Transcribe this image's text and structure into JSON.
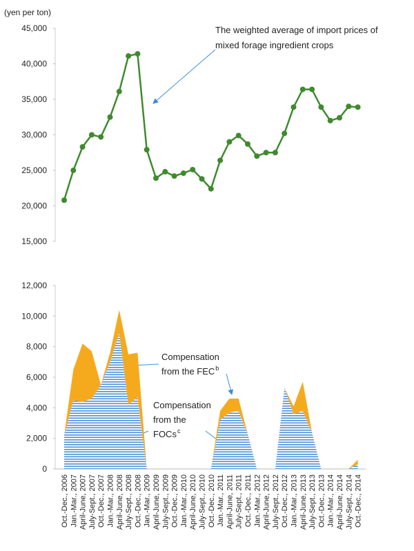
{
  "chart_data": [
    {
      "type": "line",
      "y_label": "(yen per ton)",
      "annotation": [
        "The weighted average of import prices of",
        "mixed forage ingredient crops"
      ],
      "categories": [
        "Oct.-Dec., 2006",
        "Jan.-Mar., 2007",
        "April-June, 2007",
        "July-Sept., 2007",
        "Oct.-Dec., 2007",
        "Jan.-Mar., 2008",
        "April-June, 2008",
        "July-Sept., 2008",
        "Oct.-Dec., 2008",
        "Jan.-Mar., 2009",
        "April-June, 2009",
        "July-Sept., 2009",
        "Oct.-Dec., 2009",
        "Jan.-Mar., 2010",
        "April-June, 2010",
        "July-Sept., 2010",
        "Oct.-Dec., 2010",
        "Jan.-Mar., 2011",
        "April-June, 2011",
        "July-Sept., 2011",
        "Oct.-Dec., 2011",
        "Jan.-Mar., 2012",
        "April-June, 2012",
        "July-Sept., 2012",
        "Oct.-Dec., 2012",
        "Jan.-Mar., 2013",
        "April-June, 2013",
        "July-Sept., 2013",
        "Oct.-Dec., 2013",
        "Jan.-Mar., 2014",
        "April-June, 2014",
        "July-Sept., 2014",
        "Oct.-Dec., 2014"
      ],
      "values": [
        20800,
        25000,
        28300,
        30000,
        29700,
        32500,
        36100,
        41100,
        41400,
        27900,
        23900,
        24800,
        24200,
        24600,
        25100,
        23800,
        22400,
        26400,
        29000,
        29900,
        28700,
        27000,
        27500,
        27500,
        30200,
        33900,
        36400,
        36400,
        33900,
        32000,
        32400,
        34000,
        33900
      ],
      "color": "#3f8a2e",
      "ylim": [
        15000,
        45000
      ],
      "yticks": [
        {
          "value": 15000,
          "label": "15,000"
        },
        {
          "value": 20000,
          "label": "20,000"
        },
        {
          "value": 25000,
          "label": "25,000"
        },
        {
          "value": 30000,
          "label": "30,000"
        },
        {
          "value": 35000,
          "label": "35,000"
        },
        {
          "value": 40000,
          "label": "40,000"
        },
        {
          "value": 45000,
          "label": "45,000"
        }
      ]
    },
    {
      "type": "stacked_area",
      "categories": [
        "Oct.-Dec., 2006",
        "Jan.-Mar., 2007",
        "April-June, 2007",
        "July-Sept., 2007",
        "Oct.-Dec., 2007",
        "Jan.-Mar., 2008",
        "April-June, 2008",
        "July-Sept., 2008",
        "Oct.-Dec., 2008",
        "Jan.-Mar., 2009",
        "April-June, 2009",
        "July-Sept., 2009",
        "Oct.-Dec., 2009",
        "Jan.-Mar., 2010",
        "April-June, 2010",
        "July-Sept., 2010",
        "Oct.-Dec., 2010",
        "Jan.-Mar., 2011",
        "April-June, 2011",
        "July-Sept., 2011",
        "Oct.-Dec., 2011",
        "Jan.-Mar., 2012",
        "April-June, 2012",
        "July-Sept., 2012",
        "Oct.-Dec., 2012",
        "Jan.-Mar., 2013",
        "April-June, 2013",
        "July-Sept., 2013",
        "Oct.-Dec., 2013",
        "Jan.-Mar., 2014",
        "April-June, 2014",
        "July-Sept., 2014",
        "Oct.-Dec., 2014"
      ],
      "series": [
        {
          "label_lines": [
            "Compensation",
            "from the",
            "FOCs"
          ],
          "superscript": "c",
          "color": "#4a8fd6",
          "values": [
            2200,
            4500,
            4400,
            4600,
            5500,
            7000,
            8900,
            4200,
            4700,
            0,
            0,
            0,
            0,
            0,
            0,
            0,
            0,
            3200,
            3700,
            3800,
            2300,
            0,
            0,
            0,
            5300,
            3600,
            3800,
            2400,
            0,
            0,
            0,
            0,
            300
          ]
        },
        {
          "label_lines": [
            "Compensation",
            "from the FEC"
          ],
          "superscript": "b",
          "color": "#f5aa1e",
          "values": [
            0,
            2000,
            3800,
            3100,
            0,
            600,
            1500,
            3300,
            2900,
            0,
            0,
            0,
            0,
            0,
            0,
            0,
            0,
            600,
            900,
            800,
            0,
            0,
            0,
            0,
            0,
            500,
            1900,
            0,
            0,
            0,
            0,
            0,
            300
          ]
        }
      ],
      "ylim": [
        0,
        12000
      ],
      "yticks": [
        0,
        {
          "value": 2000,
          "label": "2,000"
        },
        {
          "value": 4000,
          "label": "4,000"
        },
        {
          "value": 6000,
          "label": "6,000"
        },
        {
          "value": 8000,
          "label": "8,000"
        },
        {
          "value": 10000,
          "label": "10,000"
        },
        {
          "value": 12000,
          "label": "12,000"
        }
      ]
    }
  ]
}
